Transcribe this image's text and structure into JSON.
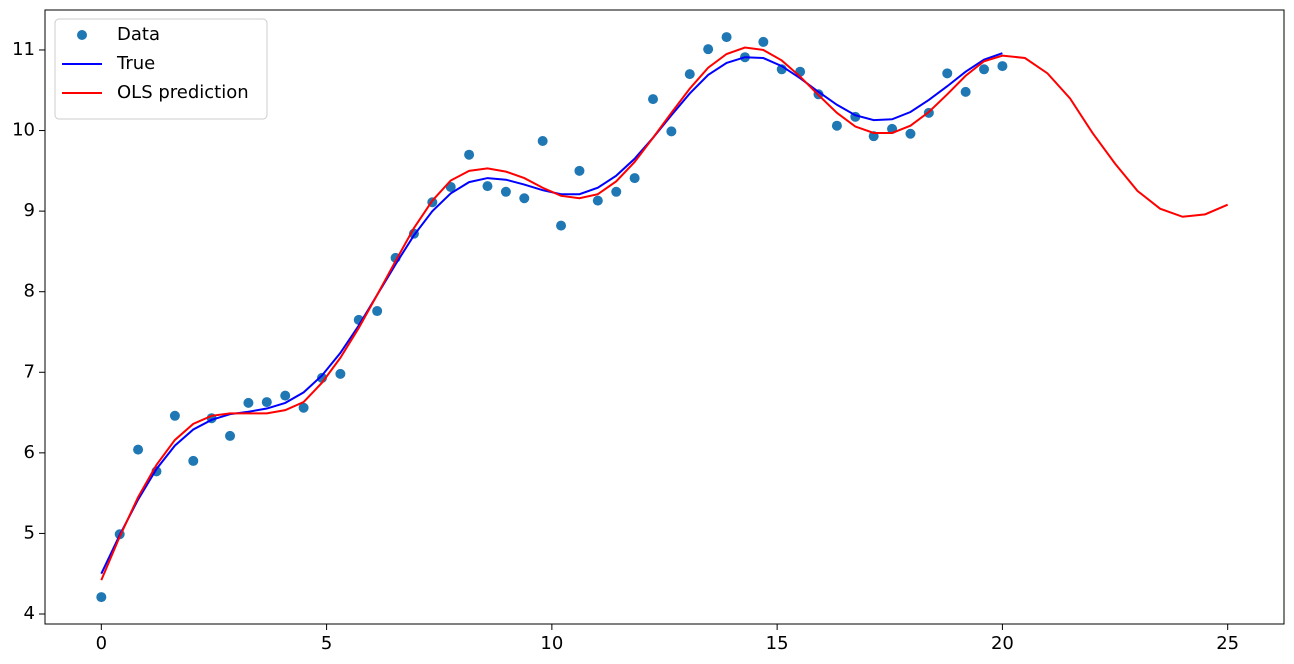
{
  "chart_data": {
    "type": "line",
    "legend": "upper left",
    "xlim": [
      -1.25,
      26.25
    ],
    "xticks": [
      0,
      5,
      10,
      15,
      20,
      25
    ],
    "ylim": [
      3.876,
      11.496
    ],
    "yticks": [
      4,
      5,
      6,
      7,
      8,
      9,
      10,
      11
    ],
    "series": [
      {
        "name": "Data",
        "color": "#1f77b4",
        "marker": "o",
        "x": [
          0,
          0.408,
          0.816,
          1.224,
          1.633,
          2.041,
          2.449,
          2.857,
          3.265,
          3.673,
          4.082,
          4.49,
          4.898,
          5.306,
          5.714,
          6.122,
          6.531,
          6.939,
          7.347,
          7.755,
          8.163,
          8.571,
          8.98,
          9.388,
          9.796,
          10.204,
          10.612,
          11.02,
          11.429,
          11.837,
          12.245,
          12.653,
          13.061,
          13.469,
          13.878,
          14.286,
          14.694,
          15.102,
          15.51,
          15.918,
          16.327,
          16.735,
          17.143,
          17.551,
          17.959,
          18.367,
          18.776,
          19.184,
          19.592,
          20
        ],
        "values": [
          4.21,
          4.99,
          6.04,
          5.77,
          6.46,
          5.9,
          6.43,
          6.21,
          6.62,
          6.63,
          6.71,
          6.56,
          6.93,
          6.98,
          7.65,
          7.76,
          8.42,
          8.72,
          9.11,
          9.3,
          9.7,
          9.31,
          9.24,
          9.16,
          9.87,
          8.82,
          9.5,
          9.13,
          9.24,
          9.41,
          10.39,
          9.99,
          10.7,
          11.01,
          11.16,
          10.91,
          11.1,
          10.76,
          10.73,
          10.45,
          10.06,
          10.17,
          9.93,
          10.02,
          9.96,
          10.22,
          10.71,
          10.48,
          10.76,
          10.8
        ]
      },
      {
        "name": "True",
        "color": "#0000ff",
        "linestyle": "-",
        "x": [
          0,
          0.408,
          0.816,
          1.224,
          1.633,
          2.041,
          2.449,
          2.857,
          3.265,
          3.673,
          4.082,
          4.49,
          4.898,
          5.306,
          5.714,
          6.122,
          6.531,
          6.939,
          7.347,
          7.755,
          8.163,
          8.571,
          8.98,
          9.388,
          9.796,
          10.204,
          10.612,
          11.02,
          11.429,
          11.837,
          12.245,
          12.653,
          13.061,
          13.469,
          13.878,
          14.286,
          14.694,
          15.102,
          15.51,
          15.918,
          16.327,
          16.735,
          17.143,
          17.551,
          17.959,
          18.367,
          18.776,
          19.184,
          19.592,
          20
        ],
        "values": [
          4.5,
          4.98,
          5.42,
          5.8,
          6.09,
          6.29,
          6.41,
          6.48,
          6.51,
          6.55,
          6.62,
          6.75,
          6.96,
          7.24,
          7.58,
          7.96,
          8.34,
          8.7,
          9.0,
          9.22,
          9.36,
          9.41,
          9.39,
          9.33,
          9.26,
          9.21,
          9.21,
          9.29,
          9.44,
          9.65,
          9.91,
          10.19,
          10.46,
          10.69,
          10.84,
          10.91,
          10.9,
          10.8,
          10.65,
          10.48,
          10.32,
          10.19,
          10.13,
          10.14,
          10.23,
          10.38,
          10.55,
          10.73,
          10.88,
          10.96
        ]
      },
      {
        "name": "OLS prediction",
        "color": "#ff0000",
        "linestyle": "-",
        "x": [
          0,
          0.408,
          0.816,
          1.224,
          1.633,
          2.041,
          2.449,
          2.857,
          3.265,
          3.673,
          4.082,
          4.49,
          4.898,
          5.306,
          5.714,
          6.122,
          6.531,
          6.939,
          7.347,
          7.755,
          8.163,
          8.571,
          8.98,
          9.388,
          9.796,
          10.204,
          10.612,
          11.02,
          11.429,
          11.837,
          12.245,
          12.653,
          13.061,
          13.469,
          13.878,
          14.286,
          14.694,
          15.102,
          15.51,
          15.918,
          16.327,
          16.735,
          17.143,
          17.551,
          17.959,
          18.367,
          18.776,
          19.184,
          19.592,
          20,
          20.5,
          21,
          21.5,
          22,
          22.5,
          23,
          23.5,
          24,
          24.5,
          25
        ],
        "values": [
          4.42,
          4.96,
          5.45,
          5.85,
          6.16,
          6.36,
          6.46,
          6.49,
          6.49,
          6.49,
          6.53,
          6.63,
          6.87,
          7.18,
          7.55,
          7.96,
          8.38,
          8.79,
          9.13,
          9.38,
          9.5,
          9.53,
          9.49,
          9.41,
          9.29,
          9.19,
          9.16,
          9.21,
          9.37,
          9.61,
          9.91,
          10.22,
          10.52,
          10.78,
          10.95,
          11.03,
          11.0,
          10.87,
          10.67,
          10.44,
          10.22,
          10.05,
          9.97,
          9.97,
          10.06,
          10.23,
          10.45,
          10.68,
          10.86,
          10.93,
          10.9,
          10.71,
          10.4,
          9.97,
          9.59,
          9.25,
          9.03,
          8.93,
          8.96,
          9.08
        ]
      }
    ]
  }
}
